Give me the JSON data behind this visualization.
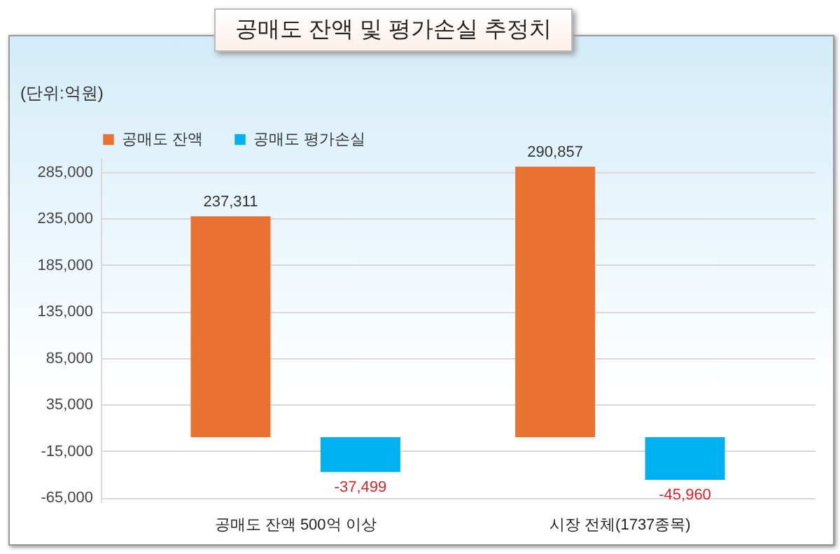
{
  "chart_data": {
    "type": "bar",
    "title": "공매도 잔액 및 평가손실 추정치",
    "ylabel": "(단위:억원)",
    "categories": [
      "공매도 잔액 500억 이상",
      "시장 전체(1737종목)"
    ],
    "series": [
      {
        "name": "공매도 잔액",
        "color": "#e97132",
        "values": [
          237311,
          290857
        ],
        "value_labels": [
          "237,311",
          "290,857"
        ]
      },
      {
        "name": "공매도 평가손실",
        "color": "#00b0f0",
        "values": [
          -37499,
          -45960
        ],
        "value_labels": [
          "-37,499",
          "-45,960"
        ]
      }
    ],
    "ylim": [
      -70000,
      300000
    ],
    "yticks": [
      {
        "value": -65000,
        "label": "-65,000"
      },
      {
        "value": -15000,
        "label": "-15,000"
      },
      {
        "value": 35000,
        "label": "35,000"
      },
      {
        "value": 85000,
        "label": "85,000"
      },
      {
        "value": 135000,
        "label": "135,000"
      },
      {
        "value": 185000,
        "label": "185,000"
      },
      {
        "value": 235000,
        "label": "235,000"
      },
      {
        "value": 285000,
        "label": "285,000"
      }
    ],
    "grid": "y",
    "legend": "top"
  }
}
